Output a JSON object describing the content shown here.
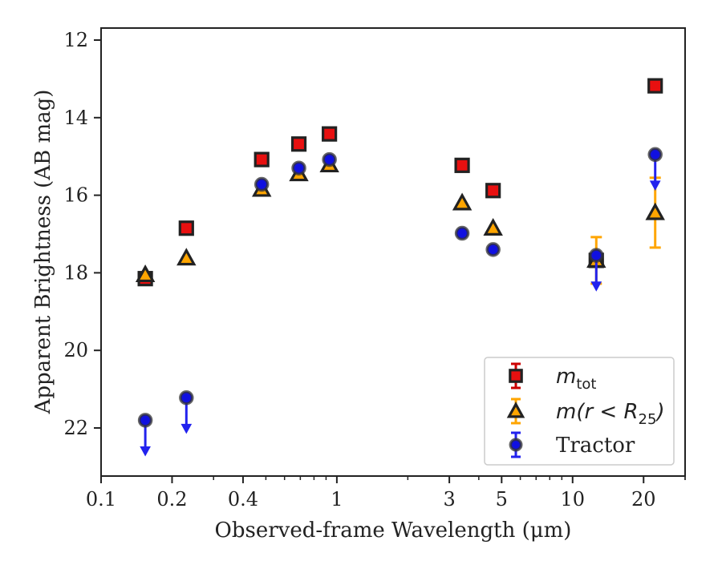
{
  "chart_data": {
    "type": "scatter",
    "xscale": "log",
    "xlim": [
      0.1,
      30
    ],
    "ylim": [
      12,
      23
    ],
    "y_inverted": true,
    "xlabel": "Observed-frame Wavelength (μm)",
    "ylabel": "Apparent Brightness (AB mag)",
    "x_ticks": [
      {
        "value": 0.1,
        "label": "0.1"
      },
      {
        "value": 0.2,
        "label": "0.2"
      },
      {
        "value": 0.4,
        "label": "0.4"
      },
      {
        "value": 1,
        "label": "1"
      },
      {
        "value": 3,
        "label": "3"
      },
      {
        "value": 5,
        "label": "5"
      },
      {
        "value": 10,
        "label": "10"
      },
      {
        "value": 20,
        "label": "20"
      }
    ],
    "y_ticks": [
      {
        "value": 12,
        "label": "12"
      },
      {
        "value": 14,
        "label": "14"
      },
      {
        "value": 16,
        "label": "16"
      },
      {
        "value": 18,
        "label": "18"
      },
      {
        "value": 20,
        "label": "20"
      },
      {
        "value": 22,
        "label": "22"
      }
    ],
    "legend_position": "lower-right",
    "series": [
      {
        "name": "m_tot",
        "legend_label": {
          "main": "m",
          "sub": "tot"
        },
        "marker": "square",
        "color": "#e81010",
        "error_color": "#cc0000",
        "points": [
          {
            "x": 0.154,
            "y": 18.15,
            "err": 0.1
          },
          {
            "x": 0.23,
            "y": 16.85,
            "err": 0
          },
          {
            "x": 0.48,
            "y": 15.08,
            "err": 0
          },
          {
            "x": 0.69,
            "y": 14.68,
            "err": 0
          },
          {
            "x": 0.93,
            "y": 14.42,
            "err": 0
          },
          {
            "x": 3.4,
            "y": 15.23,
            "err": 0
          },
          {
            "x": 4.6,
            "y": 15.88,
            "err": 0
          },
          {
            "x": 12.6,
            "y": 17.68,
            "err": 0
          },
          {
            "x": 22.4,
            "y": 13.18,
            "err": 0
          }
        ]
      },
      {
        "name": "m(r<R25)",
        "legend_label": {
          "main": "m(r < R",
          "sub": "25",
          "tail": ")"
        },
        "marker": "triangle",
        "color": "#ffa500",
        "error_color": "#ffa500",
        "points": [
          {
            "x": 0.154,
            "y": 18.05,
            "err": 0
          },
          {
            "x": 0.23,
            "y": 17.62,
            "err": 0
          },
          {
            "x": 0.48,
            "y": 15.85,
            "err": 0
          },
          {
            "x": 0.69,
            "y": 15.45,
            "err": 0
          },
          {
            "x": 0.93,
            "y": 15.22,
            "err": 0
          },
          {
            "x": 3.4,
            "y": 16.2,
            "err": 0
          },
          {
            "x": 4.6,
            "y": 16.85,
            "err": 0
          },
          {
            "x": 12.6,
            "y": 17.68,
            "err": 0.6
          },
          {
            "x": 22.4,
            "y": 16.45,
            "err": 0.9
          }
        ]
      },
      {
        "name": "Tractor",
        "legend_label": {
          "main": "Tractor"
        },
        "marker": "circle",
        "color": "#1010e0",
        "error_color": "#2222ee",
        "points": [
          {
            "x": 0.154,
            "y": 21.8,
            "upper_limit": true
          },
          {
            "x": 0.23,
            "y": 21.22,
            "upper_limit": true
          },
          {
            "x": 0.48,
            "y": 15.72
          },
          {
            "x": 0.69,
            "y": 15.3
          },
          {
            "x": 0.93,
            "y": 15.08
          },
          {
            "x": 3.4,
            "y": 16.98
          },
          {
            "x": 4.6,
            "y": 17.4
          },
          {
            "x": 12.6,
            "y": 17.55,
            "upper_limit": true
          },
          {
            "x": 22.4,
            "y": 14.95,
            "upper_limit": true
          }
        ]
      }
    ]
  }
}
